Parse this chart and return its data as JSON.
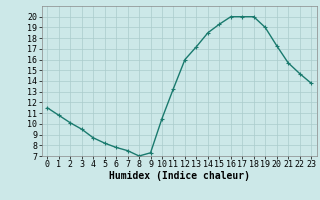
{
  "x": [
    0,
    1,
    2,
    3,
    4,
    5,
    6,
    7,
    8,
    9,
    10,
    11,
    12,
    13,
    14,
    15,
    16,
    17,
    18,
    19,
    20,
    21,
    22,
    23
  ],
  "y": [
    11.5,
    10.8,
    10.1,
    9.5,
    8.7,
    8.2,
    7.8,
    7.5,
    7.0,
    7.3,
    10.5,
    13.3,
    16.0,
    17.2,
    18.5,
    19.3,
    20.0,
    20.0,
    20.0,
    19.0,
    17.3,
    15.7,
    14.7,
    13.8
  ],
  "line_color": "#1a7a6e",
  "marker": "+",
  "marker_size": 3,
  "marker_lw": 0.8,
  "background_color": "#cce8e8",
  "grid_color": "#aacccc",
  "xlabel": "Humidex (Indice chaleur)",
  "xlabel_fontsize": 7,
  "ylim": [
    7,
    21
  ],
  "xlim": [
    -0.5,
    23.5
  ],
  "yticks": [
    7,
    8,
    9,
    10,
    11,
    12,
    13,
    14,
    15,
    16,
    17,
    18,
    19,
    20
  ],
  "xticks": [
    0,
    1,
    2,
    3,
    4,
    5,
    6,
    7,
    8,
    9,
    10,
    11,
    12,
    13,
    14,
    15,
    16,
    17,
    18,
    19,
    20,
    21,
    22,
    23
  ],
  "tick_fontsize": 6,
  "line_width": 1.0
}
